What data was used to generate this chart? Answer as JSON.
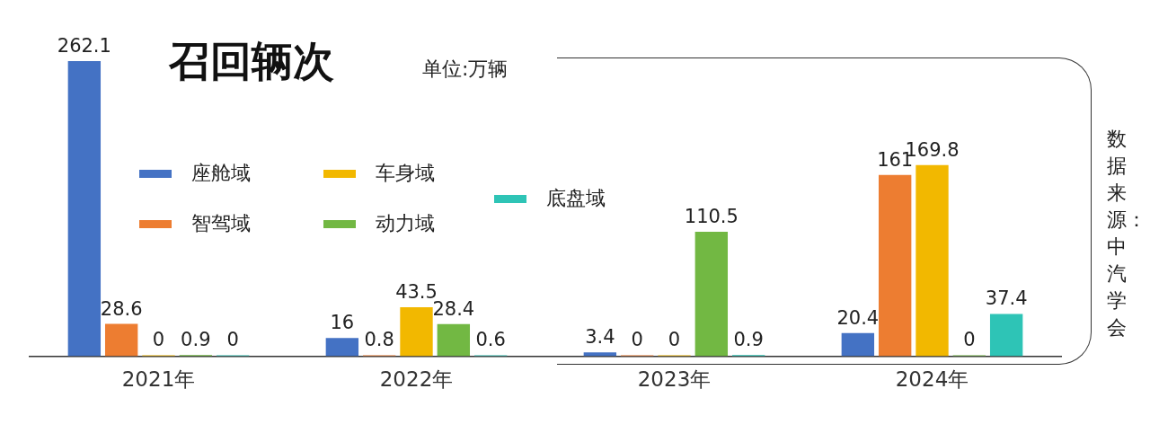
{
  "chart_data": {
    "type": "bar",
    "title": "召回辆次",
    "subtitle": "单位:万辆",
    "annotations": [
      "数据来源：中汽学会"
    ],
    "categories": [
      "2021年",
      "2022年",
      "2023年",
      "2024年"
    ],
    "series": [
      {
        "name": "座舱域",
        "color": "#4472c4",
        "values": [
          262.1,
          16,
          3.4,
          20.4
        ]
      },
      {
        "name": "智驾域",
        "color": "#ed7d31",
        "values": [
          28.6,
          0.8,
          0,
          161
        ]
      },
      {
        "name": "车身域",
        "color": "#f2b800",
        "values": [
          0,
          43.5,
          0,
          169.8
        ]
      },
      {
        "name": "动力域",
        "color": "#72b843",
        "values": [
          0.9,
          28.4,
          110.5,
          0
        ]
      },
      {
        "name": "底盘域",
        "color": "#2ec4b6",
        "values": [
          0,
          0.6,
          0.9,
          37.4
        ]
      }
    ],
    "data_labels": true,
    "legend": "top left",
    "grid": false,
    "tick_labels": "x"
  }
}
